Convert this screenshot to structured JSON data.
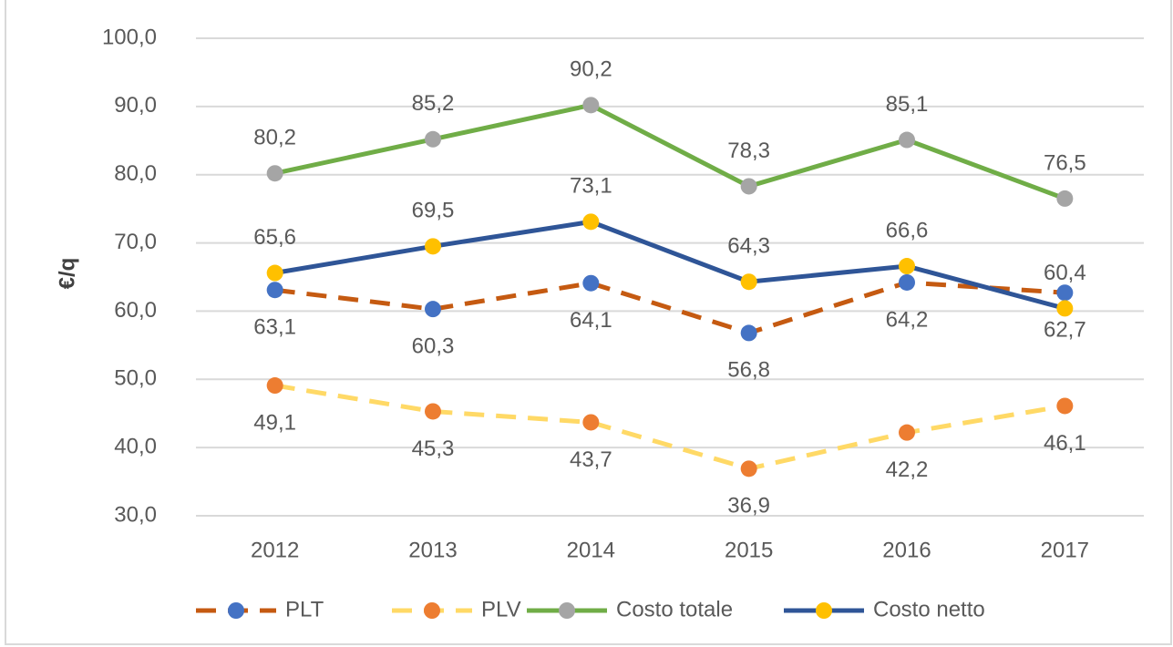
{
  "chart_data": {
    "type": "line",
    "y_label": "€/q",
    "categories": [
      "2012",
      "2013",
      "2014",
      "2015",
      "2016",
      "2017"
    ],
    "series": [
      {
        "name": "PLT",
        "color": "#c55a11",
        "marker_color": "#4472c4",
        "dashed": true,
        "label_position": "below",
        "values": [
          63.1,
          60.3,
          64.1,
          56.8,
          64.2,
          62.7
        ],
        "value_labels": [
          "63,1",
          "60,3",
          "64,1",
          "56,8",
          "64,2",
          "62,7"
        ]
      },
      {
        "name": "PLV",
        "color": "#ffd966",
        "marker_color": "#ed7d31",
        "dashed": true,
        "label_position": "below",
        "values": [
          49.1,
          45.3,
          43.7,
          36.9,
          42.2,
          46.1
        ],
        "value_labels": [
          "49,1",
          "45,3",
          "43,7",
          "36,9",
          "42,2",
          "46,1"
        ]
      },
      {
        "name": "Costo totale",
        "color": "#70ad47",
        "marker_color": "#a5a5a5",
        "dashed": false,
        "label_position": "above",
        "values": [
          80.2,
          85.2,
          90.2,
          78.3,
          85.1,
          76.5
        ],
        "value_labels": [
          "80,2",
          "85,2",
          "90,2",
          "78,3",
          "85,1",
          "76,5"
        ]
      },
      {
        "name": "Costo netto",
        "color": "#2f5597",
        "marker_color": "#ffc000",
        "dashed": false,
        "label_position": "above",
        "values": [
          65.6,
          69.5,
          73.1,
          64.3,
          66.6,
          60.4
        ],
        "value_labels": [
          "65,6",
          "69,5",
          "73,1",
          "64,3",
          "66,6",
          "60,4"
        ]
      }
    ],
    "ylim": [
      30,
      100
    ],
    "yticks": [
      {
        "value": 30,
        "label": "30,0"
      },
      {
        "value": 40,
        "label": "40,0"
      },
      {
        "value": 50,
        "label": "50,0"
      },
      {
        "value": 60,
        "label": "60,0"
      },
      {
        "value": 70,
        "label": "70,0"
      },
      {
        "value": 80,
        "label": "80,0"
      },
      {
        "value": 90,
        "label": "90,0"
      },
      {
        "value": 100,
        "label": "100,0"
      }
    ],
    "grid": true,
    "legend": "bottom"
  }
}
